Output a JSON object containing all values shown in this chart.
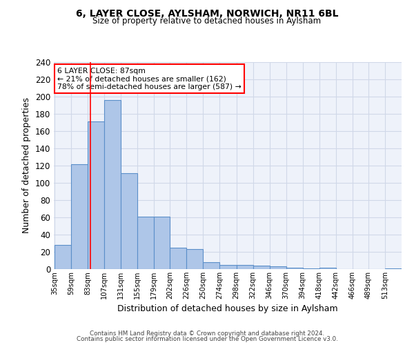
{
  "title_line1": "6, LAYER CLOSE, AYLSHAM, NORWICH, NR11 6BL",
  "title_line2": "Size of property relative to detached houses in Aylsham",
  "xlabel": "Distribution of detached houses by size in Aylsham",
  "ylabel": "Number of detached properties",
  "bin_labels": [
    "35sqm",
    "59sqm",
    "83sqm",
    "107sqm",
    "131sqm",
    "155sqm",
    "179sqm",
    "202sqm",
    "226sqm",
    "250sqm",
    "274sqm",
    "298sqm",
    "322sqm",
    "346sqm",
    "370sqm",
    "394sqm",
    "418sqm",
    "442sqm",
    "466sqm",
    "489sqm",
    "513sqm"
  ],
  "bar_values": [
    28,
    122,
    171,
    196,
    111,
    61,
    61,
    25,
    23,
    8,
    5,
    5,
    4,
    3,
    2,
    1,
    2,
    0,
    0,
    0,
    1
  ],
  "bar_color": "#aec6e8",
  "bar_edge_color": "#5b8fc9",
  "grid_color": "#d0d8e8",
  "bg_color": "#eef2fa",
  "annotation_text": "6 LAYER CLOSE: 87sqm\n← 21% of detached houses are smaller (162)\n78% of semi-detached houses are larger (587) →",
  "red_line_x": 87,
  "ylim": [
    0,
    240
  ],
  "yticks": [
    0,
    20,
    40,
    60,
    80,
    100,
    120,
    140,
    160,
    180,
    200,
    220,
    240
  ],
  "footnote_line1": "Contains HM Land Registry data © Crown copyright and database right 2024.",
  "footnote_line2": "Contains public sector information licensed under the Open Government Licence v3.0.",
  "bin_edges_sqm": [
    35,
    59,
    83,
    107,
    131,
    155,
    179,
    202,
    226,
    250,
    274,
    298,
    322,
    346,
    370,
    394,
    418,
    442,
    466,
    489,
    513,
    537
  ]
}
